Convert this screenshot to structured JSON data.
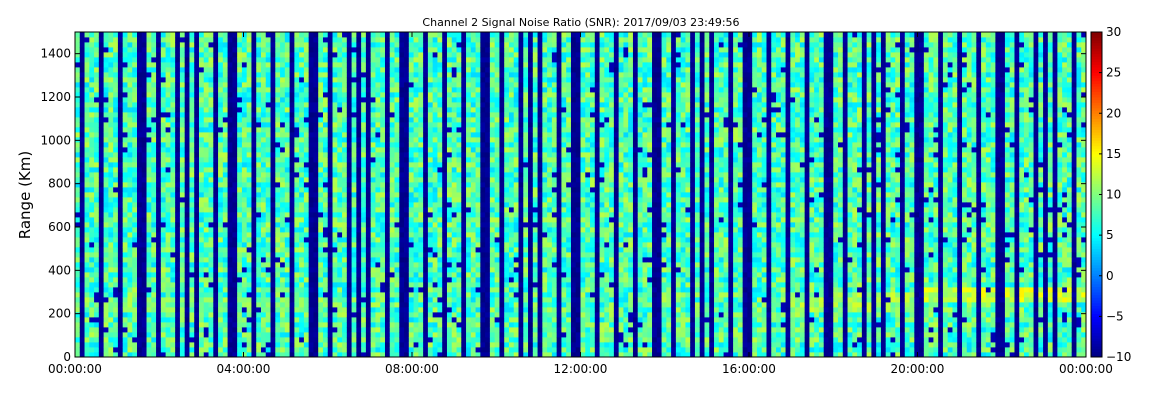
{
  "chart_data": {
    "type": "heatmap",
    "title": "Channel 2 Signal Noise Ratio (SNR): 2017/09/03 23:49:56",
    "xlabel": "",
    "ylabel": "Range (Km)",
    "x_ticks": [
      "00:00:00",
      "04:00:00",
      "08:00:00",
      "12:00:00",
      "16:00:00",
      "20:00:00",
      "00:00:00"
    ],
    "x_range_hours": [
      0,
      24
    ],
    "y_ticks": [
      0,
      200,
      400,
      600,
      800,
      1000,
      1200,
      1400
    ],
    "ylim": [
      0,
      1500
    ],
    "colorbar": {
      "colormap": "jet",
      "range": [
        -10,
        30
      ],
      "ticks": [
        -10,
        -5,
        0,
        5,
        10,
        15,
        20,
        25,
        30
      ]
    },
    "grid": false,
    "features": {
      "background_snr": 8,
      "gap_snr": -10,
      "echo_layers": [
        {
          "from_hour": 0,
          "to_hour": 6.5,
          "range_km": 240,
          "snr": 8
        },
        {
          "from_hour": 0,
          "to_hour": 5.5,
          "range_km": 475,
          "snr": 4
        },
        {
          "from_hour": 6.5,
          "to_hour": 17.5,
          "range_km": 110,
          "snr": 6
        },
        {
          "from_hour": 17,
          "to_hour": 20,
          "range_km": 250,
          "snr": 10
        },
        {
          "from_hour": 20,
          "to_hour": 24,
          "range_km": 290,
          "snr": 12
        },
        {
          "from_hour": 20,
          "to_hour": 24,
          "range_km": 600,
          "snr": 4
        }
      ]
    }
  }
}
